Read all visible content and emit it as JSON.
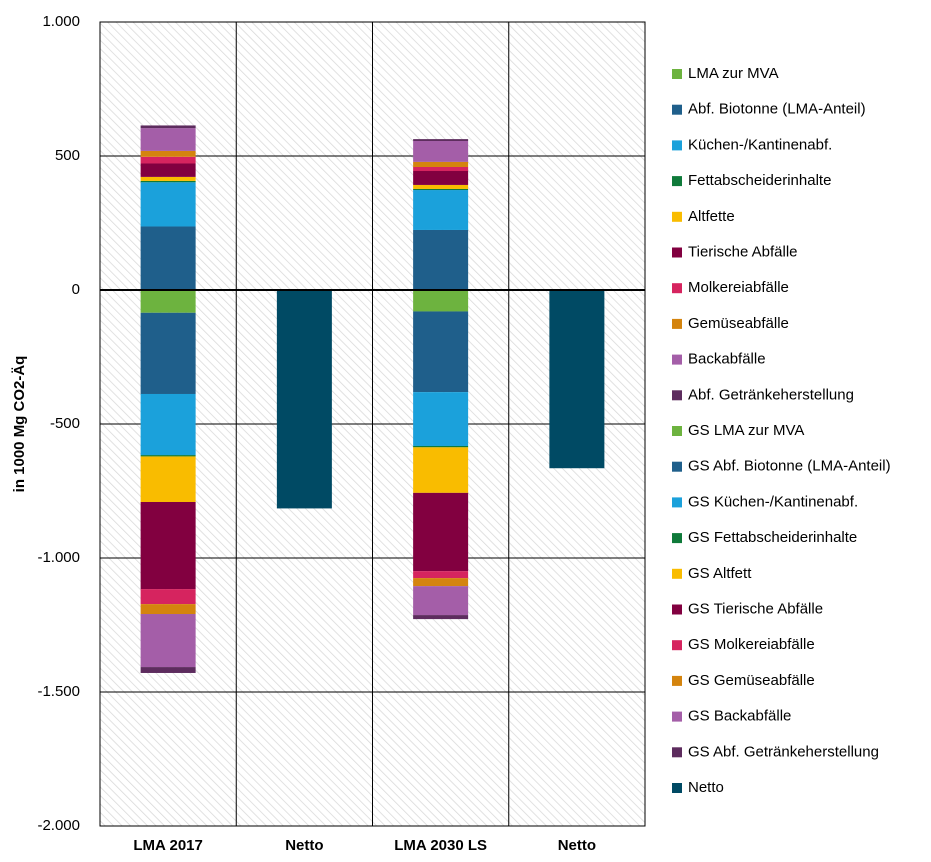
{
  "chart_data": {
    "type": "stacked_bar",
    "y_label": "in 1000 Mg CO2-Äq",
    "categories": [
      "LMA 2017",
      "Netto",
      "LMA 2030 LS",
      "Netto"
    ],
    "ylim": [
      -2000,
      1000
    ],
    "yticks": [
      {
        "value": 1000,
        "label": "1.000"
      },
      500,
      0,
      -500,
      {
        "value": -1000,
        "label": "-1.000"
      },
      {
        "value": -1500,
        "label": "-1.500"
      },
      {
        "value": -2000,
        "label": "-2.000"
      }
    ],
    "grid": true,
    "legend": "right",
    "series": [
      {
        "name": "LMA zur MVA",
        "color": "#6db33f",
        "values": [
          0,
          null,
          0,
          null
        ]
      },
      {
        "name": "Abf. Biotonne (LMA-Anteil)",
        "color": "#1f5f8b",
        "values": [
          237,
          null,
          224,
          null
        ]
      },
      {
        "name": "Küchen-/Kantinenabf.",
        "color": "#1ba1db",
        "values": [
          165,
          null,
          149,
          null
        ]
      },
      {
        "name": "Fettabscheiderinhalte",
        "color": "#0f7a3a",
        "values": [
          5,
          null,
          4,
          null
        ]
      },
      {
        "name": "Altfette",
        "color": "#f9bc00",
        "values": [
          15,
          null,
          15,
          null
        ]
      },
      {
        "name": "Tierische Abfälle",
        "color": "#820040",
        "values": [
          50,
          null,
          52,
          null
        ]
      },
      {
        "name": "Molkereiabfälle",
        "color": "#d6245f",
        "values": [
          25,
          null,
          15,
          null
        ]
      },
      {
        "name": "Gemüseabfälle",
        "color": "#d4840e",
        "values": [
          22,
          null,
          19,
          null
        ]
      },
      {
        "name": "Backabfälle",
        "color": "#a45ea8",
        "values": [
          85,
          null,
          78,
          null
        ]
      },
      {
        "name": "Abf. Getränkeherstellung",
        "color": "#5d2c5e",
        "values": [
          10,
          null,
          7,
          null
        ]
      },
      {
        "name": "GS LMA zur MVA",
        "color": "#6db33f",
        "values": [
          -85,
          null,
          -80,
          null
        ]
      },
      {
        "name": "GS Abf. Biotonne (LMA-Anteil)",
        "color": "#1f5f8b",
        "values": [
          -303,
          null,
          -301,
          null
        ]
      },
      {
        "name": "GS Küchen-/Kantinenabf.",
        "color": "#1ba1db",
        "values": [
          -228,
          null,
          -201,
          null
        ]
      },
      {
        "name": "GS Fettabscheiderinhalte",
        "color": "#0f7a3a",
        "values": [
          -5,
          null,
          -5,
          null
        ]
      },
      {
        "name": "GS Altfett",
        "color": "#f9bc00",
        "values": [
          -170,
          null,
          -170,
          null
        ]
      },
      {
        "name": "GS Tierische Abfälle",
        "color": "#820040",
        "values": [
          -325,
          null,
          -292,
          null
        ]
      },
      {
        "name": "GS Molkereiabfälle",
        "color": "#d6245f",
        "values": [
          -56,
          null,
          -26,
          null
        ]
      },
      {
        "name": "GS Gemüseabfälle",
        "color": "#d4840e",
        "values": [
          -37,
          null,
          -30,
          null
        ]
      },
      {
        "name": "GS Backabfälle",
        "color": "#a45ea8",
        "values": [
          -198,
          null,
          -108,
          null
        ]
      },
      {
        "name": "GS Abf. Getränkeherstellung",
        "color": "#5d2c5e",
        "values": [
          -22,
          null,
          -15,
          null
        ]
      },
      {
        "name": "Netto",
        "color": "#004a64",
        "values": [
          null,
          -815,
          null,
          -665
        ]
      }
    ]
  }
}
